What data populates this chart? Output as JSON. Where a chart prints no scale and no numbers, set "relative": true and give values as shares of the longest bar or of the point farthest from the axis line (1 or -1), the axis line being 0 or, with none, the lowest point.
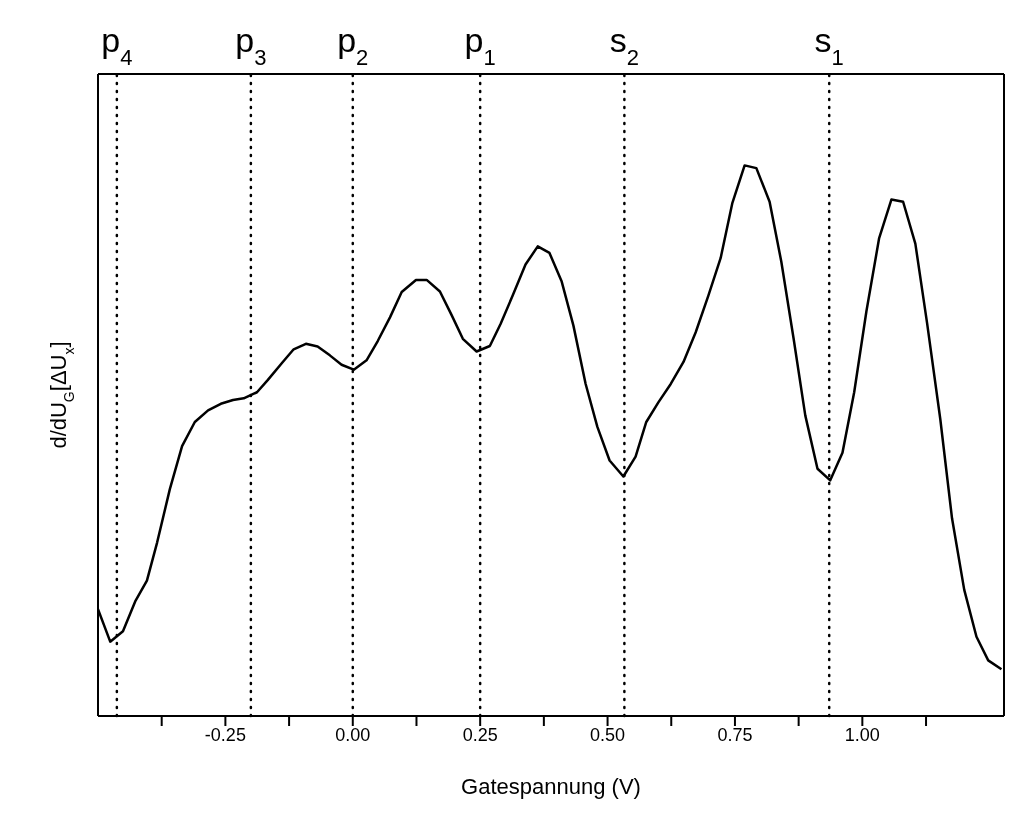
{
  "chart_data": {
    "type": "line",
    "xlabel": "Gatespannung (V)",
    "ylabel": "d/dU$_{G}$[ΔU$_{x}$]",
    "relative": true,
    "xlim": [
      -0.5,
      1.278
    ],
    "xticks": [
      {
        "value": -0.375,
        "label": null
      },
      {
        "value": -0.25,
        "label": "-0.25"
      },
      {
        "value": -0.125,
        "label": null
      },
      {
        "value": 0,
        "label": "0.00"
      },
      {
        "value": 0.125,
        "label": null
      },
      {
        "value": 0.25,
        "label": "0.25"
      },
      {
        "value": 0.375,
        "label": null
      },
      {
        "value": 0.5,
        "label": "0.50"
      },
      {
        "value": 0.625,
        "label": null
      },
      {
        "value": 0.75,
        "label": "0.75"
      },
      {
        "value": 0.875,
        "label": null
      },
      {
        "value": 1,
        "label": "1.00"
      },
      {
        "value": 1.125,
        "label": null
      }
    ],
    "grid": false,
    "legend": false,
    "marker": "none",
    "line_style": "solid",
    "series": [
      {
        "color": "#000000",
        "x": [
          -0.5,
          -0.476,
          -0.451,
          -0.427,
          -0.404,
          -0.384,
          -0.359,
          -0.335,
          -0.31,
          -0.284,
          -0.259,
          -0.235,
          -0.214,
          -0.188,
          -0.167,
          -0.139,
          -0.116,
          -0.092,
          -0.069,
          -0.045,
          -0.022,
          0.002,
          0.027,
          0.049,
          0.073,
          0.096,
          0.124,
          0.145,
          0.171,
          0.194,
          0.216,
          0.243,
          0.269,
          0.29,
          0.314,
          0.339,
          0.363,
          0.386,
          0.41,
          0.433,
          0.457,
          0.48,
          0.504,
          0.531,
          0.555,
          0.576,
          0.6,
          0.624,
          0.649,
          0.673,
          0.698,
          0.722,
          0.745,
          0.769,
          0.792,
          0.818,
          0.841,
          0.865,
          0.888,
          0.912,
          0.937,
          0.961,
          0.984,
          1.008,
          1.033,
          1.057,
          1.08,
          1.104,
          1.127,
          1.153,
          1.176,
          1.2,
          1.224,
          1.247,
          1.273
        ],
        "values": [
          0.194,
          0.135,
          0.154,
          0.208,
          0.246,
          0.315,
          0.412,
          0.49,
          0.534,
          0.555,
          0.567,
          0.574,
          0.577,
          0.588,
          0.61,
          0.641,
          0.666,
          0.676,
          0.671,
          0.655,
          0.638,
          0.629,
          0.646,
          0.681,
          0.724,
          0.77,
          0.792,
          0.792,
          0.771,
          0.728,
          0.685,
          0.662,
          0.672,
          0.712,
          0.764,
          0.82,
          0.853,
          0.841,
          0.789,
          0.709,
          0.603,
          0.525,
          0.464,
          0.435,
          0.471,
          0.534,
          0.57,
          0.603,
          0.643,
          0.697,
          0.764,
          0.832,
          0.932,
          1,
          0.995,
          0.934,
          0.825,
          0.686,
          0.546,
          0.449,
          0.428,
          0.478,
          0.588,
          0.735,
          0.868,
          0.938,
          0.934,
          0.858,
          0.714,
          0.539,
          0.359,
          0.229,
          0.144,
          0.101,
          0.085
        ]
      }
    ],
    "ref_lines": [
      {
        "axis": "x",
        "value": -0.463,
        "label": "p$_{4}$",
        "line_style": "dotted"
      },
      {
        "axis": "x",
        "value": -0.2,
        "label": "p$_{3}$",
        "line_style": "dotted"
      },
      {
        "axis": "x",
        "value": 0,
        "label": "p$_{2}$",
        "line_style": "dotted"
      },
      {
        "axis": "x",
        "value": 0.25,
        "label": "p$_{1}$",
        "line_style": "dotted"
      },
      {
        "axis": "x",
        "value": 0.533,
        "label": "s$_{2}$",
        "line_style": "dotted"
      },
      {
        "axis": "x",
        "value": 0.935,
        "label": "s$_{1}$",
        "line_style": "dotted"
      }
    ]
  }
}
